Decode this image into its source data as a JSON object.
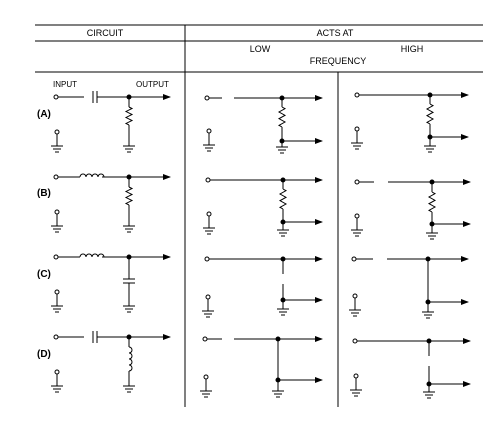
{
  "table": {
    "col_circuit": "CIRCUIT",
    "col_acts_at": "ACTS AT",
    "sub_low": "LOW",
    "sub_high": "HIGH",
    "sub_frequency": "FREQUENCY"
  },
  "circuit_labels": {
    "input": "INPUT",
    "output": "OUTPUT"
  },
  "rows": [
    {
      "label": "(A)",
      "series": "capacitor",
      "shunt": "resistor"
    },
    {
      "label": "(B)",
      "series": "inductor",
      "shunt": "resistor"
    },
    {
      "label": "(C)",
      "series": "inductor",
      "shunt": "capacitor"
    },
    {
      "label": "(D)",
      "series": "capacitor",
      "shunt": "inductor"
    }
  ],
  "colors": {
    "line": "#000000",
    "background": "#ffffff"
  }
}
